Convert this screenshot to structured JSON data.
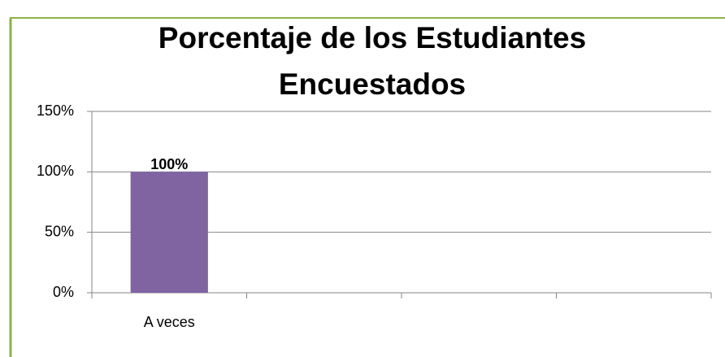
{
  "chart_data": {
    "type": "bar",
    "title": "Porcentaje de los Estudiantes Encuestados",
    "categories": [
      "A veces",
      null,
      null,
      null
    ],
    "values": [
      100,
      null,
      null,
      null
    ],
    "value_labels": [
      "100%",
      null,
      null,
      null
    ],
    "color": "#8064a2",
    "ylim": [
      0,
      150
    ],
    "yticks": [
      {
        "value": 0,
        "label": "0%"
      },
      {
        "value": 50,
        "label": "50%"
      },
      {
        "value": 100,
        "label": "100%"
      },
      {
        "value": 150,
        "label": "150%"
      }
    ],
    "grid": true
  }
}
